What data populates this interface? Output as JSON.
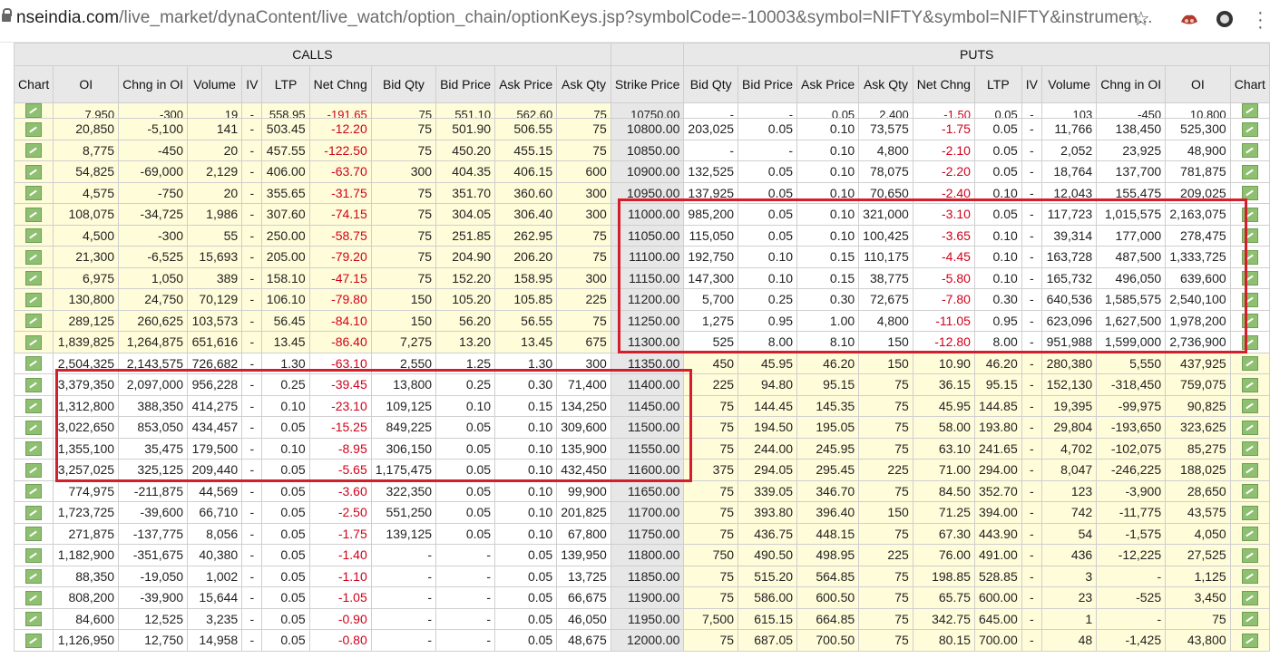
{
  "browser": {
    "url_domain": "nseindia.com",
    "url_path": "/live_market/dynaContent/live_watch/option_chain/optionKeys.jsp?symbolCode=-10003&symbol=NIFTY&symbol=NIFTY&instrumen...",
    "star": "☆"
  },
  "sections": {
    "calls": "CALLS",
    "puts": "PUTS"
  },
  "headers": [
    "Chart",
    "OI",
    "Chng in OI",
    "Volume",
    "IV",
    "LTP",
    "Net Chng",
    "Bid Qty",
    "Bid Price",
    "Ask Price",
    "Ask Qty",
    "Strike Price",
    "Bid Qty",
    "Bid Price",
    "Ask Price",
    "Ask Qty",
    "Net Chng",
    "LTP",
    "IV",
    "Volume",
    "Chng in OI",
    "OI",
    "Chart"
  ],
  "rows": [
    {
      "c": [
        "7,950",
        "-300",
        "19",
        "-",
        "558.95",
        "-191.65",
        "75",
        "551.10",
        "562.60",
        "75"
      ],
      "s": "10750.00",
      "p": [
        "-",
        "-",
        "0.05",
        "2,400",
        "-1.50",
        "0.05",
        "-",
        "103",
        "-450",
        "10,800"
      ],
      "tint": "yl"
    },
    {
      "c": [
        "20,850",
        "-5,100",
        "141",
        "-",
        "503.45",
        "-12.20",
        "75",
        "501.90",
        "506.55",
        "75"
      ],
      "s": "10800.00",
      "p": [
        "203,025",
        "0.05",
        "0.10",
        "73,575",
        "-1.75",
        "0.05",
        "-",
        "11,766",
        "138,450",
        "525,300"
      ],
      "tint": "yl"
    },
    {
      "c": [
        "8,775",
        "-450",
        "20",
        "-",
        "457.55",
        "-122.50",
        "75",
        "450.20",
        "455.15",
        "75"
      ],
      "s": "10850.00",
      "p": [
        "-",
        "-",
        "0.10",
        "4,800",
        "-2.10",
        "0.05",
        "-",
        "2,052",
        "23,925",
        "48,900"
      ],
      "tint": "yl"
    },
    {
      "c": [
        "54,825",
        "-69,000",
        "2,129",
        "-",
        "406.00",
        "-63.70",
        "300",
        "404.35",
        "406.15",
        "600"
      ],
      "s": "10900.00",
      "p": [
        "132,525",
        "0.05",
        "0.10",
        "78,075",
        "-2.20",
        "0.05",
        "-",
        "18,764",
        "137,700",
        "781,875"
      ],
      "tint": "yl"
    },
    {
      "c": [
        "4,575",
        "-750",
        "20",
        "-",
        "355.65",
        "-31.75",
        "75",
        "351.70",
        "360.60",
        "300"
      ],
      "s": "10950.00",
      "p": [
        "137,925",
        "0.05",
        "0.10",
        "70,650",
        "-2.40",
        "0.10",
        "-",
        "12,043",
        "155,475",
        "209,025"
      ],
      "tint": "yl"
    },
    {
      "c": [
        "108,075",
        "-34,725",
        "1,986",
        "-",
        "307.60",
        "-74.15",
        "75",
        "304.05",
        "306.40",
        "300"
      ],
      "s": "11000.00",
      "p": [
        "985,200",
        "0.05",
        "0.10",
        "321,000",
        "-3.10",
        "0.05",
        "-",
        "117,723",
        "1,015,575",
        "2,163,075"
      ],
      "tint": "yl"
    },
    {
      "c": [
        "4,500",
        "-300",
        "55",
        "-",
        "250.00",
        "-58.75",
        "75",
        "251.85",
        "262.95",
        "75"
      ],
      "s": "11050.00",
      "p": [
        "115,050",
        "0.05",
        "0.10",
        "100,425",
        "-3.65",
        "0.10",
        "-",
        "39,314",
        "177,000",
        "278,475"
      ],
      "tint": "yl"
    },
    {
      "c": [
        "21,300",
        "-6,525",
        "15,693",
        "-",
        "205.00",
        "-79.20",
        "75",
        "204.90",
        "206.20",
        "75"
      ],
      "s": "11100.00",
      "p": [
        "192,750",
        "0.10",
        "0.15",
        "110,175",
        "-4.45",
        "0.10",
        "-",
        "163,728",
        "487,500",
        "1,333,725"
      ],
      "tint": "yl"
    },
    {
      "c": [
        "6,975",
        "1,050",
        "389",
        "-",
        "158.10",
        "-47.15",
        "75",
        "152.20",
        "158.95",
        "300"
      ],
      "s": "11150.00",
      "p": [
        "147,300",
        "0.10",
        "0.15",
        "38,775",
        "-5.80",
        "0.10",
        "-",
        "165,732",
        "496,050",
        "639,600"
      ],
      "tint": "yl"
    },
    {
      "c": [
        "130,800",
        "24,750",
        "70,129",
        "-",
        "106.10",
        "-79.80",
        "150",
        "105.20",
        "105.85",
        "225"
      ],
      "s": "11200.00",
      "p": [
        "5,700",
        "0.25",
        "0.30",
        "72,675",
        "-7.80",
        "0.30",
        "-",
        "640,536",
        "1,585,575",
        "2,540,100"
      ],
      "tint": "yl"
    },
    {
      "c": [
        "289,125",
        "260,625",
        "103,573",
        "-",
        "56.45",
        "-84.10",
        "150",
        "56.20",
        "56.55",
        "75"
      ],
      "s": "11250.00",
      "p": [
        "1,275",
        "0.95",
        "1.00",
        "4,800",
        "-11.05",
        "0.95",
        "-",
        "623,096",
        "1,627,500",
        "1,978,200"
      ],
      "tint": "yl"
    },
    {
      "c": [
        "1,839,825",
        "1,264,875",
        "651,616",
        "-",
        "13.45",
        "-86.40",
        "7,275",
        "13.20",
        "13.45",
        "675"
      ],
      "s": "11300.00",
      "p": [
        "525",
        "8.00",
        "8.10",
        "150",
        "-12.80",
        "8.00",
        "-",
        "951,988",
        "1,599,000",
        "2,736,900"
      ],
      "tint": "yl"
    },
    {
      "c": [
        "2,504,325",
        "2,143,575",
        "726,682",
        "-",
        "1.30",
        "-63.10",
        "2,550",
        "1.25",
        "1.30",
        "300"
      ],
      "s": "11350.00",
      "p": [
        "450",
        "45.95",
        "46.20",
        "150",
        "10.90",
        "46.20",
        "-",
        "280,380",
        "5,550",
        "437,925"
      ],
      "tint": "wh"
    },
    {
      "c": [
        "3,379,350",
        "2,097,000",
        "956,228",
        "-",
        "0.25",
        "-39.45",
        "13,800",
        "0.25",
        "0.30",
        "71,400"
      ],
      "s": "11400.00",
      "p": [
        "225",
        "94.80",
        "95.15",
        "75",
        "36.15",
        "95.15",
        "-",
        "152,130",
        "-318,450",
        "759,075"
      ],
      "tint": "wh"
    },
    {
      "c": [
        "1,312,800",
        "388,350",
        "414,275",
        "-",
        "0.10",
        "-23.10",
        "109,125",
        "0.10",
        "0.15",
        "134,250"
      ],
      "s": "11450.00",
      "p": [
        "75",
        "144.45",
        "145.35",
        "75",
        "45.95",
        "144.85",
        "-",
        "19,395",
        "-99,975",
        "90,825"
      ],
      "tint": "wh"
    },
    {
      "c": [
        "3,022,650",
        "853,050",
        "434,457",
        "-",
        "0.05",
        "-15.25",
        "849,225",
        "0.05",
        "0.10",
        "309,600"
      ],
      "s": "11500.00",
      "p": [
        "75",
        "194.50",
        "195.05",
        "75",
        "58.00",
        "193.80",
        "-",
        "29,804",
        "-193,650",
        "323,625"
      ],
      "tint": "wh"
    },
    {
      "c": [
        "1,355,100",
        "35,475",
        "179,500",
        "-",
        "0.10",
        "-8.95",
        "306,150",
        "0.05",
        "0.10",
        "135,900"
      ],
      "s": "11550.00",
      "p": [
        "75",
        "244.00",
        "245.95",
        "75",
        "63.10",
        "241.65",
        "-",
        "4,702",
        "-102,075",
        "85,275"
      ],
      "tint": "wh"
    },
    {
      "c": [
        "3,257,025",
        "325,125",
        "209,440",
        "-",
        "0.05",
        "-5.65",
        "1,175,475",
        "0.05",
        "0.10",
        "432,450"
      ],
      "s": "11600.00",
      "p": [
        "375",
        "294.05",
        "295.45",
        "225",
        "71.00",
        "294.00",
        "-",
        "8,047",
        "-246,225",
        "188,025"
      ],
      "tint": "wh"
    },
    {
      "c": [
        "774,975",
        "-211,875",
        "44,569",
        "-",
        "0.05",
        "-3.60",
        "322,350",
        "0.05",
        "0.10",
        "99,900"
      ],
      "s": "11650.00",
      "p": [
        "75",
        "339.05",
        "346.70",
        "75",
        "84.50",
        "352.70",
        "-",
        "123",
        "-3,900",
        "28,650"
      ],
      "tint": "wh"
    },
    {
      "c": [
        "1,723,725",
        "-39,600",
        "66,710",
        "-",
        "0.05",
        "-2.50",
        "551,250",
        "0.05",
        "0.10",
        "201,825"
      ],
      "s": "11700.00",
      "p": [
        "75",
        "393.80",
        "396.40",
        "150",
        "71.25",
        "394.00",
        "-",
        "742",
        "-11,775",
        "43,575"
      ],
      "tint": "wh"
    },
    {
      "c": [
        "271,875",
        "-137,775",
        "8,056",
        "-",
        "0.05",
        "-1.75",
        "139,125",
        "0.05",
        "0.10",
        "67,800"
      ],
      "s": "11750.00",
      "p": [
        "75",
        "436.75",
        "448.15",
        "75",
        "67.30",
        "443.90",
        "-",
        "54",
        "-1,575",
        "4,050"
      ],
      "tint": "wh"
    },
    {
      "c": [
        "1,182,900",
        "-351,675",
        "40,380",
        "-",
        "0.05",
        "-1.40",
        "-",
        "-",
        "0.05",
        "139,950"
      ],
      "s": "11800.00",
      "p": [
        "750",
        "490.50",
        "498.95",
        "225",
        "76.00",
        "491.00",
        "-",
        "436",
        "-12,225",
        "27,525"
      ],
      "tint": "wh"
    },
    {
      "c": [
        "88,350",
        "-19,050",
        "1,002",
        "-",
        "0.05",
        "-1.10",
        "-",
        "-",
        "0.05",
        "13,725"
      ],
      "s": "11850.00",
      "p": [
        "75",
        "515.20",
        "564.85",
        "75",
        "198.85",
        "528.85",
        "-",
        "3",
        "-",
        "1,125"
      ],
      "tint": "wh"
    },
    {
      "c": [
        "808,200",
        "-39,900",
        "15,644",
        "-",
        "0.05",
        "-1.05",
        "-",
        "-",
        "0.05",
        "66,675"
      ],
      "s": "11900.00",
      "p": [
        "75",
        "586.00",
        "600.50",
        "75",
        "65.75",
        "600.00",
        "-",
        "23",
        "-525",
        "3,450"
      ],
      "tint": "wh"
    },
    {
      "c": [
        "84,600",
        "12,525",
        "3,235",
        "-",
        "0.05",
        "-0.90",
        "-",
        "-",
        "0.05",
        "46,050"
      ],
      "s": "11950.00",
      "p": [
        "7,500",
        "615.15",
        "664.85",
        "75",
        "342.75",
        "645.00",
        "-",
        "1",
        "-",
        "75"
      ],
      "tint": "wh"
    },
    {
      "c": [
        "1,126,950",
        "12,750",
        "14,958",
        "-",
        "0.05",
        "-0.80",
        "-",
        "-",
        "0.05",
        "48,675"
      ],
      "s": "12000.00",
      "p": [
        "75",
        "687.05",
        "700.50",
        "75",
        "80.15",
        "700.00",
        "-",
        "48",
        "-1,425",
        "43,800"
      ],
      "tint": "wh"
    }
  ]
}
